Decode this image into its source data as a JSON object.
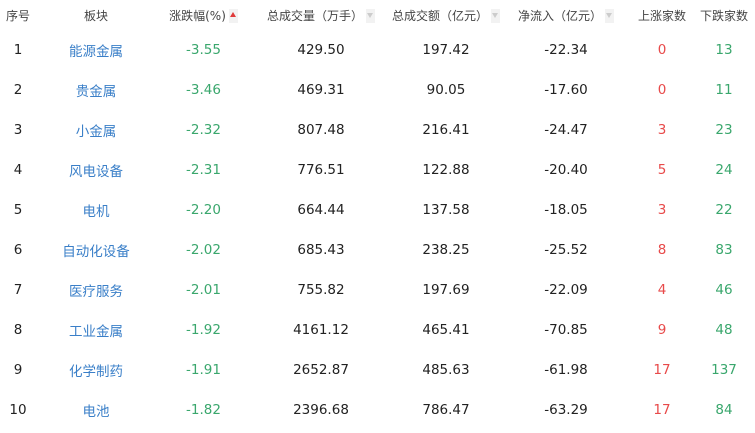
{
  "colors": {
    "name": "#3a7fc8",
    "down": "#3aa76d",
    "up": "#e84a4a"
  },
  "headers": [
    "序号",
    "板块",
    "涨跌幅(%)",
    "总成交量（万手）",
    "总成交额（亿元）",
    "净流入（亿元）",
    "上涨家数",
    "下跌家数"
  ],
  "sort": {
    "column": "涨跌幅(%)",
    "direction": "ascending"
  },
  "rows": [
    [
      "1",
      "能源金属",
      "-3.55",
      "429.50",
      "197.42",
      "-22.34",
      "0",
      "13"
    ],
    [
      "2",
      "贵金属",
      "-3.46",
      "469.31",
      "90.05",
      "-17.60",
      "0",
      "11"
    ],
    [
      "3",
      "小金属",
      "-2.32",
      "807.48",
      "216.41",
      "-24.47",
      "3",
      "23"
    ],
    [
      "4",
      "风电设备",
      "-2.31",
      "776.51",
      "122.88",
      "-20.40",
      "5",
      "24"
    ],
    [
      "5",
      "电机",
      "-2.20",
      "664.44",
      "137.58",
      "-18.05",
      "3",
      "22"
    ],
    [
      "6",
      "自动化设备",
      "-2.02",
      "685.43",
      "238.25",
      "-25.52",
      "8",
      "83"
    ],
    [
      "7",
      "医疗服务",
      "-2.01",
      "755.82",
      "197.69",
      "-22.09",
      "4",
      "46"
    ],
    [
      "8",
      "工业金属",
      "-1.92",
      "4161.12",
      "465.41",
      "-70.85",
      "9",
      "48"
    ],
    [
      "9",
      "化学制药",
      "-1.91",
      "2652.87",
      "485.63",
      "-61.98",
      "17",
      "137"
    ],
    [
      "10",
      "电池",
      "-1.82",
      "2396.68",
      "786.47",
      "-63.29",
      "17",
      "84"
    ]
  ]
}
